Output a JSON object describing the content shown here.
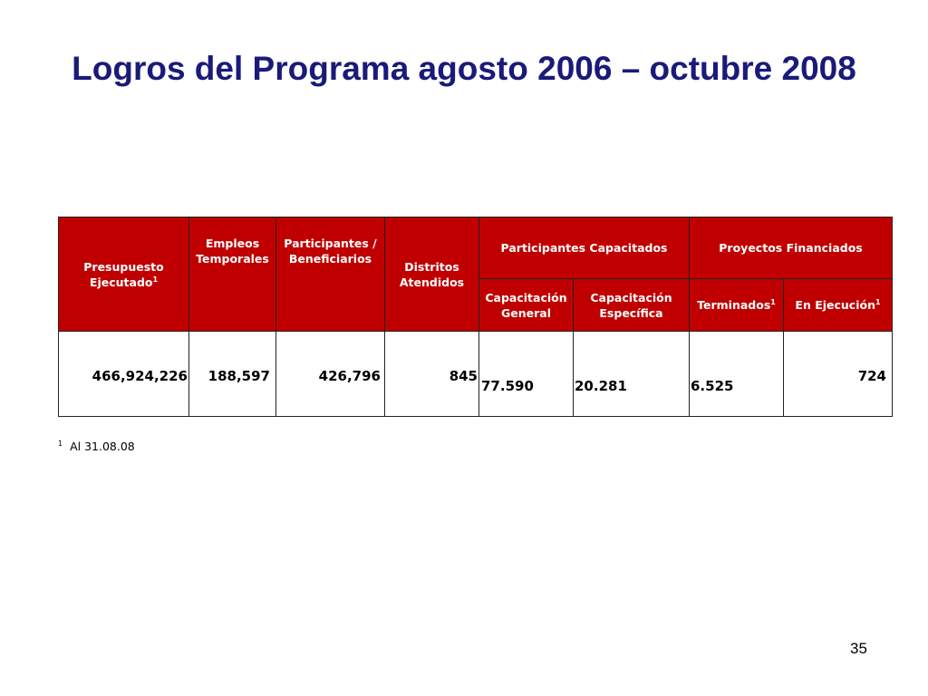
{
  "slide": {
    "title": "Logros del Programa agosto 2006 – octubre 2008",
    "page_number": "35"
  },
  "table": {
    "headers": {
      "presupuesto": "Presupuesto Ejecutado",
      "empleos": "Empleos Temporales",
      "participantes": "Participantes / Beneficiarios",
      "distritos": "Distritos Atendidos",
      "capacitados": "Participantes Capacitados",
      "proyectos": "Proyectos Financiados",
      "cap_general": "Capacitación General",
      "cap_especifica": "Capacitación Específica",
      "terminados": "Terminados",
      "en_ejecucion": "En Ejecución",
      "footnote_mark": "1"
    },
    "values": {
      "presupuesto": "466,924,226",
      "empleos": "188,597",
      "participantes": "426,796",
      "distritos": "845",
      "cap_general": "77.590",
      "cap_especifica": "20.281",
      "terminados": "6.525",
      "en_ejecucion": "724"
    }
  },
  "footnote": {
    "mark": "1",
    "text": "Al 31.08.08"
  }
}
